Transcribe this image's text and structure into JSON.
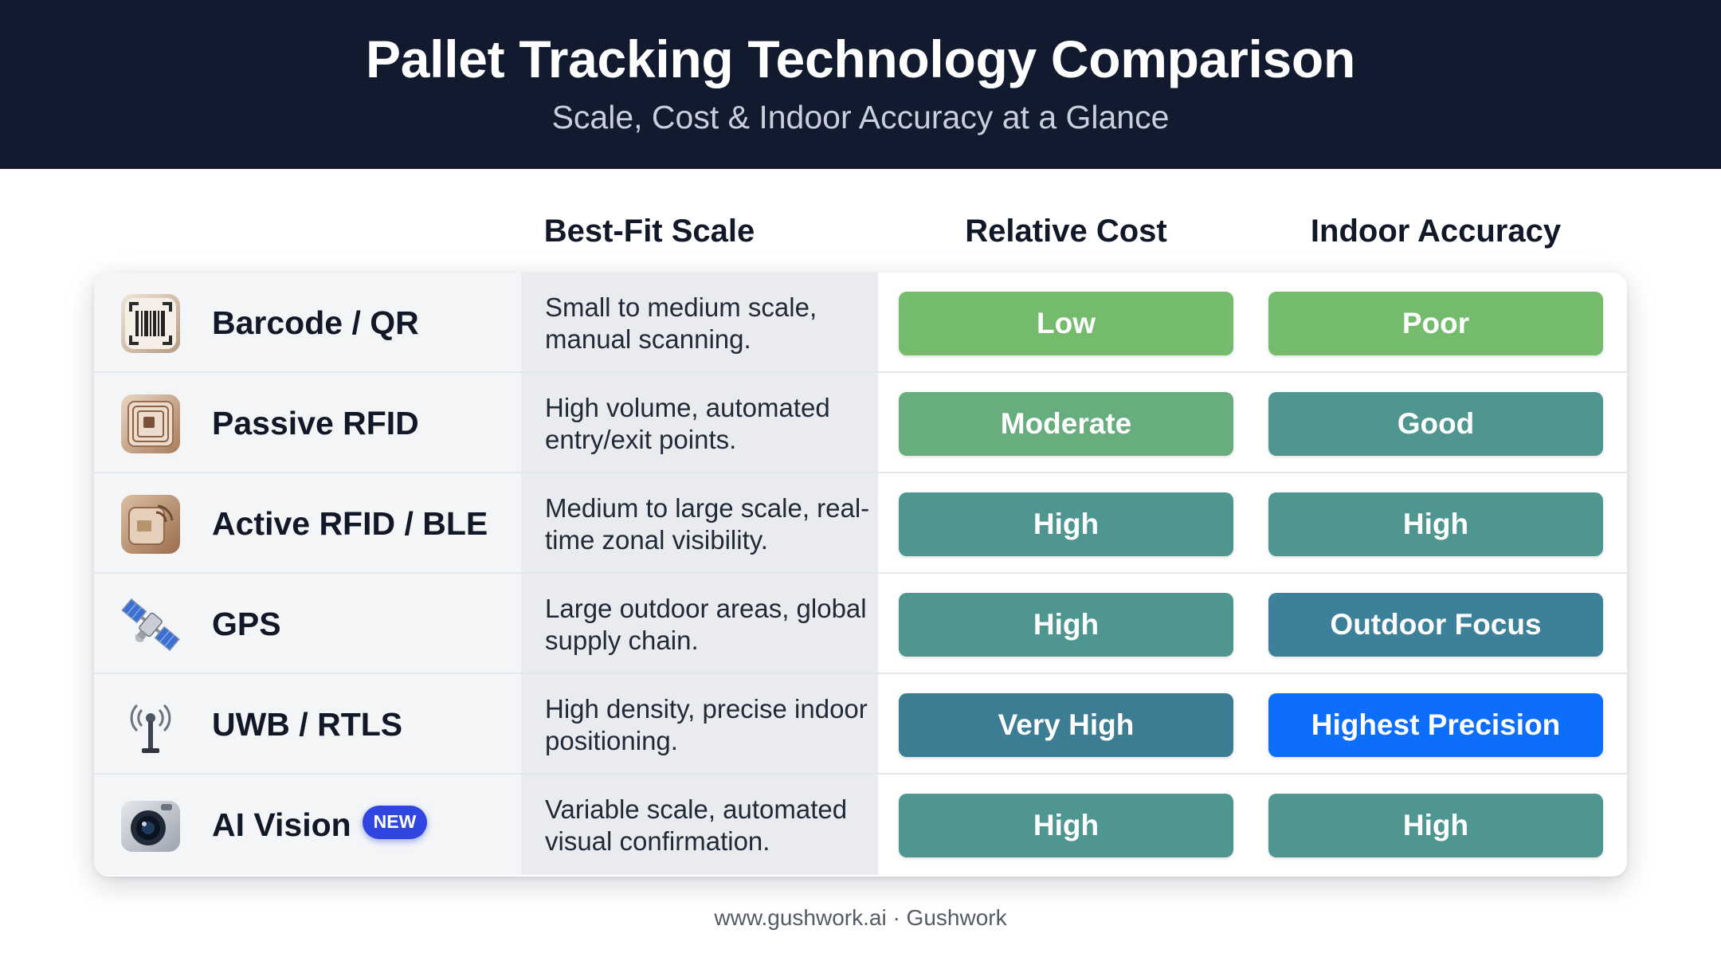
{
  "header": {
    "title": "Pallet Tracking Technology Comparison",
    "subtitle": "Scale, Cost & Indoor Accuracy at a Glance"
  },
  "columns": {
    "scale": "Best-Fit Scale",
    "cost": "Relative Cost",
    "accuracy": "Indoor Accuracy"
  },
  "rows": [
    {
      "name": "Barcode / QR",
      "icon": "barcode-scanner-icon",
      "scale": "Small to medium scale, manual scanning.",
      "cost": "Low",
      "cost_color": "#74bb6e",
      "accuracy": "Poor",
      "accuracy_color": "#74bb6e"
    },
    {
      "name": "Passive RFID",
      "icon": "rfid-tag-icon",
      "scale": "High volume, automated entry/exit points.",
      "cost": "Moderate",
      "cost_color": "#68ad7e",
      "accuracy": "Good",
      "accuracy_color": "#4f9590"
    },
    {
      "name": "Active RFID / BLE",
      "icon": "active-rfid-icon",
      "scale": "Medium to large scale, real-time zonal visibility.",
      "cost": "High",
      "cost_color": "#4f9590",
      "accuracy": "High",
      "accuracy_color": "#4f9590"
    },
    {
      "name": "GPS",
      "icon": "satellite-icon",
      "scale": "Large outdoor areas, global supply chain.",
      "cost": "High",
      "cost_color": "#4f9590",
      "accuracy": "Outdoor Focus",
      "accuracy_color": "#3c8099"
    },
    {
      "name": "UWB / RTLS",
      "icon": "antenna-icon",
      "scale": "High density, precise indoor positioning.",
      "cost": "Very High",
      "cost_color": "#3c7d93",
      "accuracy": "Highest Precision",
      "accuracy_color": "#0d6efc"
    },
    {
      "name": "AI Vision",
      "icon": "camera-icon",
      "badge": "NEW",
      "scale": "Variable scale, automated visual confirmation.",
      "cost": "High",
      "cost_color": "#4f9590",
      "accuracy": "High",
      "accuracy_color": "#4f9590"
    }
  ],
  "footer": "www.gushwork.ai · Gushwork"
}
